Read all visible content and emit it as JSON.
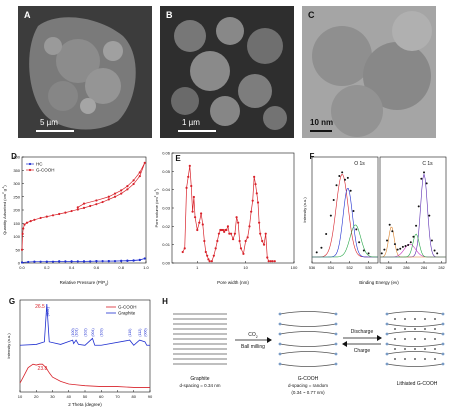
{
  "panels": {
    "A": {
      "label": "A",
      "scale": "5 µm"
    },
    "B": {
      "label": "B",
      "scale": "1 µm"
    },
    "C": {
      "label": "C",
      "scale": "10 nm"
    },
    "D": {
      "label": "D"
    },
    "E": {
      "label": "E"
    },
    "F": {
      "label": "F"
    },
    "G": {
      "label": "G"
    },
    "H": {
      "label": "H"
    }
  },
  "schematic": {
    "graphite_label": "Graphite",
    "graphite_spacing": "d-spacing = 0.34 nm",
    "step1_top": "CO",
    "step1_top_sub": "2",
    "step1_bottom": "Ball milling",
    "gcooh_label": "G-COOH",
    "gcooh_spacing1": "d-spacing = random",
    "gcooh_spacing2": "(0.34 ~ 0.77 nm)",
    "step2_top": "Discharge",
    "step2_bottom": "Charge",
    "lithiated_label": "Lithiated G-COOH",
    "colors": {
      "sheet": "#555555",
      "group": "#7a9cc6",
      "li": "#333333"
    }
  },
  "chart_data": [
    {
      "panel": "D",
      "type": "line",
      "xlabel": "Relative Pressure (P/P",
      "xlabel_sub": "0",
      "xlabel_end": ")",
      "ylabel": "Quantity Adsorbed (cm",
      "ylabel_sup1": "3",
      "ylabel_mid": " g",
      "ylabel_sup2": "-1",
      "ylabel_end": ")",
      "xlim": [
        0,
        1
      ],
      "ylim": [
        0,
        400
      ],
      "xticks": [
        "0.0",
        "0.2",
        "0.4",
        "0.6",
        "0.8",
        "1.0"
      ],
      "yticks": [
        "0",
        "50",
        "100",
        "150",
        "200",
        "250",
        "300",
        "350",
        "400"
      ],
      "legend": [
        "HC",
        "G-COOH"
      ],
      "legend_position": "top-left",
      "series": [
        {
          "name": "HC",
          "color": "#1f2fd0",
          "x": [
            0.0,
            0.05,
            0.1,
            0.15,
            0.2,
            0.25,
            0.3,
            0.35,
            0.4,
            0.45,
            0.5,
            0.55,
            0.6,
            0.65,
            0.7,
            0.75,
            0.8,
            0.85,
            0.9,
            0.95,
            0.99,
            0.95,
            0.9,
            0.85,
            0.8,
            0.7,
            0.6,
            0.5,
            0.4,
            0.3,
            0.2,
            0.1
          ],
          "y": [
            2,
            4,
            5,
            5,
            5,
            5,
            6,
            6,
            6,
            6,
            6,
            6,
            7,
            7,
            7,
            7,
            8,
            8,
            9,
            11,
            17,
            12,
            10,
            9,
            8,
            7,
            7,
            6,
            6,
            6,
            5,
            5
          ]
        },
        {
          "name": "G-COOH",
          "color": "#d8222a",
          "x": [
            0.0,
            0.005,
            0.01,
            0.02,
            0.04,
            0.07,
            0.1,
            0.15,
            0.2,
            0.25,
            0.3,
            0.35,
            0.4,
            0.45,
            0.5,
            0.55,
            0.6,
            0.65,
            0.7,
            0.75,
            0.8,
            0.85,
            0.9,
            0.95,
            0.99,
            0.95,
            0.9,
            0.85,
            0.8,
            0.75,
            0.7,
            0.6,
            0.5,
            0.45
          ],
          "y": [
            50,
            110,
            130,
            145,
            152,
            158,
            163,
            170,
            175,
            180,
            185,
            190,
            196,
            202,
            208,
            215,
            222,
            230,
            240,
            250,
            262,
            278,
            298,
            328,
            378,
            342,
            312,
            290,
            274,
            262,
            250,
            236,
            224,
            210
          ]
        }
      ]
    },
    {
      "panel": "E",
      "type": "line",
      "xlabel": "Pore width (nm)",
      "ylabel": "Pore volume (cm",
      "ylabel_sup1": "3",
      "ylabel_mid": " g",
      "ylabel_sup2": "-1",
      "ylabel_end": ")",
      "xscale": "log",
      "xlim": [
        0.3,
        100
      ],
      "ylim": [
        0,
        0.06
      ],
      "xticks": [
        "1",
        "10",
        "100"
      ],
      "yticks": [
        "0.00",
        "0.01",
        "0.02",
        "0.03",
        "0.04",
        "0.05",
        "0.06"
      ],
      "series": [
        {
          "name": "",
          "color": "#d8222a",
          "x": [
            0.5,
            0.55,
            0.6,
            0.65,
            0.7,
            0.75,
            0.8,
            0.85,
            0.9,
            1.0,
            1.1,
            1.2,
            1.3,
            1.4,
            1.5,
            1.6,
            1.7,
            1.8,
            2.0,
            2.2,
            2.4,
            2.6,
            2.8,
            3.0,
            3.2,
            3.4,
            3.6,
            3.8,
            4.0,
            4.3,
            4.6,
            5.0,
            5.5,
            6.0,
            6.5,
            7.0,
            7.5,
            8.0,
            9.0,
            10,
            11,
            12,
            13,
            14,
            15,
            16,
            17,
            18,
            19,
            20,
            22,
            24,
            26,
            28,
            30,
            33,
            36,
            40
          ],
          "y": [
            0.006,
            0.008,
            0.041,
            0.047,
            0.053,
            0.042,
            0.028,
            0.036,
            0.025,
            0.018,
            0.022,
            0.027,
            0.021,
            0.012,
            0.006,
            0.004,
            0.002,
            0.001,
            0.001,
            0.004,
            0.008,
            0.012,
            0.016,
            0.018,
            0.018,
            0.018,
            0.017,
            0.018,
            0.018,
            0.02,
            0.016,
            0.016,
            0.013,
            0.016,
            0.025,
            0.022,
            0.012,
            0.008,
            0.005,
            0.012,
            0.014,
            0.02,
            0.028,
            0.034,
            0.047,
            0.043,
            0.038,
            0.033,
            0.022,
            0.016,
            0.012,
            0.01,
            0.016,
            0.003,
            0.001,
            0.001,
            0.001,
            0.001
          ]
        }
      ]
    },
    {
      "panel": "F",
      "type": "line",
      "subpanels": [
        "O 1s",
        "C 1s"
      ],
      "xlabel": "Binding Energy (ev)",
      "ylabel": "Intensity (a.u.)",
      "xticks_left": [
        "536",
        "534",
        "532",
        "530"
      ],
      "xticks_right": [
        "288",
        "286",
        "284",
        "282"
      ],
      "xlim_left": [
        536,
        529
      ],
      "xlim_right": [
        289,
        281.5
      ],
      "series": [
        {
          "name": "O 1s data",
          "color": "#111111",
          "x": [
            535.5,
            535,
            534.5,
            534,
            533.7,
            533.4,
            533.1,
            532.8,
            532.5,
            532.2,
            531.9,
            531.6,
            531.3,
            531,
            530.5,
            530
          ],
          "y": [
            0.05,
            0.1,
            0.25,
            0.45,
            0.62,
            0.78,
            0.88,
            0.92,
            0.84,
            0.86,
            0.72,
            0.5,
            0.3,
            0.16,
            0.07,
            0.04
          ]
        },
        {
          "name": "C 1s data",
          "color": "#111111",
          "x": [
            288.8,
            288.5,
            288.2,
            287.9,
            287.6,
            287.3,
            287,
            286.7,
            286.4,
            286.1,
            285.8,
            285.5,
            285.2,
            284.9,
            284.6,
            284.3,
            284,
            283.7,
            283.4,
            283.1,
            282.8,
            282.5
          ],
          "y": [
            0.04,
            0.08,
            0.18,
            0.35,
            0.28,
            0.14,
            0.08,
            0.09,
            0.11,
            0.12,
            0.13,
            0.16,
            0.22,
            0.34,
            0.55,
            0.85,
            0.92,
            0.8,
            0.45,
            0.18,
            0.07,
            0.04
          ]
        }
      ]
    },
    {
      "panel": "G",
      "type": "line",
      "xlabel": "2 Theta (degree)",
      "ylabel": "Intensity (a.u.)",
      "xlim": [
        10,
        90
      ],
      "xticks": [
        "10",
        "20",
        "30",
        "40",
        "50",
        "60",
        "70",
        "80",
        "90"
      ],
      "legend": [
        "G-COOH",
        "Graphite"
      ],
      "legend_position": "top-right",
      "annotations": [
        "26.5",
        "(002)",
        "(100)",
        "(101)",
        "(102)",
        "(004)",
        "(103)",
        "(110)",
        "(112)",
        "(006)",
        "23.8"
      ],
      "series": [
        {
          "name": "Graphite",
          "color": "#1f2fd0",
          "x": [
            10,
            20,
            25,
            26.5,
            28,
            35,
            42.4,
            43,
            44.5,
            46,
            50,
            54.6,
            56,
            60,
            77.5,
            80,
            83.6,
            86.9,
            88,
            90
          ],
          "y": [
            0.52,
            0.53,
            0.56,
            1.0,
            0.56,
            0.53,
            0.58,
            0.54,
            0.58,
            0.53,
            0.52,
            0.6,
            0.52,
            0.52,
            0.58,
            0.52,
            0.58,
            0.56,
            0.52,
            0.52
          ]
        },
        {
          "name": "G-COOH",
          "color": "#d8222a",
          "x": [
            10,
            12,
            15,
            18,
            20,
            22,
            23.8,
            26,
            28,
            30,
            35,
            40,
            45,
            50,
            60,
            70,
            80,
            90
          ],
          "y": [
            0.08,
            0.15,
            0.26,
            0.3,
            0.29,
            0.3,
            0.3,
            0.26,
            0.2,
            0.15,
            0.1,
            0.07,
            0.06,
            0.05,
            0.04,
            0.04,
            0.03,
            0.03
          ]
        }
      ]
    }
  ]
}
